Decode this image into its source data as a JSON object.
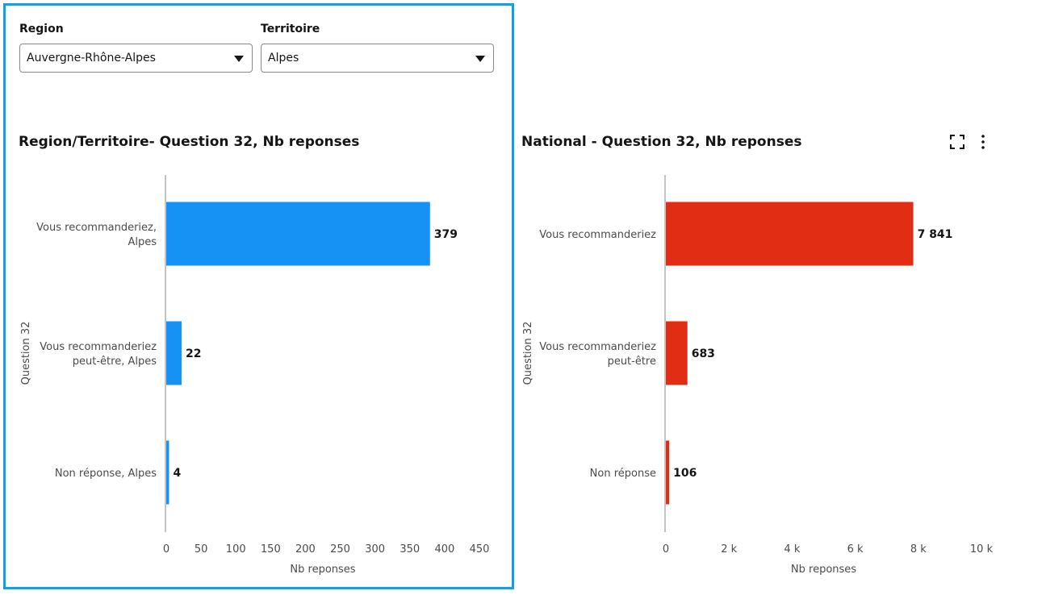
{
  "filters": {
    "region": {
      "label": "Region",
      "value": "Auvergne-Rhône-Alpes"
    },
    "territoire": {
      "label": "Territoire",
      "value": "Alpes"
    }
  },
  "colors": {
    "accent_border": "#0fa1e6",
    "series_left": "#1592f3",
    "series_right": "#e02d13"
  },
  "icons": {
    "fullscreen": "expand-icon",
    "menu": "more-vertical-icon"
  },
  "chart_data": [
    {
      "type": "bar",
      "orientation": "horizontal",
      "title": "Region/Territoire- Question 32, Nb reponses",
      "xlabel": "Nb reponses",
      "ylabel": "Question 32",
      "categories": [
        [
          "Vous recommanderiez,",
          "Alpes"
        ],
        [
          "Vous recommanderiez",
          "peut-être, Alpes"
        ],
        [
          "Non réponse, Alpes"
        ]
      ],
      "values": [
        379,
        22,
        4
      ],
      "value_labels": [
        "379",
        "22",
        "4"
      ],
      "xlim": [
        0,
        450
      ],
      "xticks": [
        0,
        50,
        100,
        150,
        200,
        250,
        300,
        350,
        400,
        450
      ],
      "xtick_labels": [
        "0",
        "50",
        "100",
        "150",
        "200",
        "250",
        "300",
        "350",
        "400",
        "450"
      ],
      "color": "#1592f3",
      "grid": false,
      "legend": "none"
    },
    {
      "type": "bar",
      "orientation": "horizontal",
      "title": "National - Question 32, Nb reponses",
      "xlabel": "Nb reponses",
      "ylabel": "Question 32",
      "categories": [
        [
          "Vous recommanderiez"
        ],
        [
          "Vous recommanderiez",
          "peut-être"
        ],
        [
          "Non réponse"
        ]
      ],
      "values": [
        7841,
        683,
        106
      ],
      "value_labels": [
        "7 841",
        "683",
        "106"
      ],
      "xlim": [
        0,
        10000
      ],
      "xticks": [
        0,
        2000,
        4000,
        6000,
        8000,
        10000
      ],
      "xtick_labels": [
        "0",
        "2 k",
        "4 k",
        "6 k",
        "8 k",
        "10 k"
      ],
      "color": "#e02d13",
      "grid": false,
      "legend": "none"
    }
  ]
}
